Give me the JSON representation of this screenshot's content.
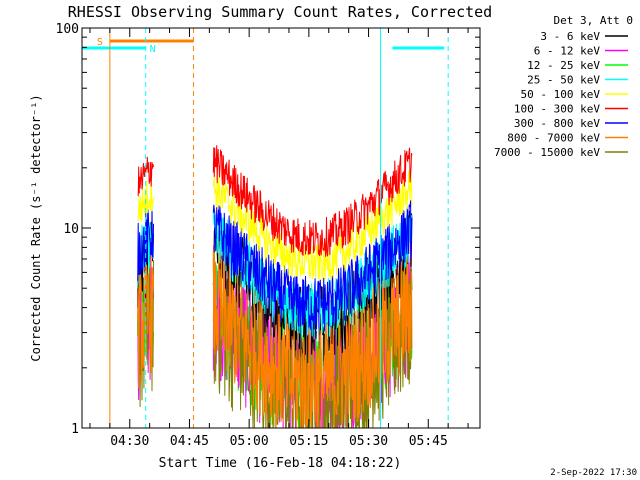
{
  "chart_data": {
    "type": "line",
    "title": "RHESSI Observing Summary Count Rates, Corrected",
    "xlabel": "Start Time (16-Feb-18 04:18:22)",
    "ylabel": "Corrected Count Rate (s⁻¹ detector⁻¹)",
    "y_scale": "log",
    "ylim": [
      1,
      100
    ],
    "yticks": [
      {
        "value": 1,
        "label": "1"
      },
      {
        "value": 10,
        "label": "10"
      },
      {
        "value": 100,
        "label": "100"
      }
    ],
    "xlim": [
      "04:18",
      "05:58"
    ],
    "xticks": [
      "04:30",
      "04:45",
      "05:00",
      "05:15",
      "05:30",
      "05:45"
    ],
    "grid": false,
    "legend_position": "top-right",
    "legend_title": "Det 3, Att 0",
    "series": [
      {
        "name": "3 - 6 keV",
        "color": "#000000"
      },
      {
        "name": "6 - 12 keV",
        "color": "#ff00ff"
      },
      {
        "name": "12 - 25 keV",
        "color": "#00ff00"
      },
      {
        "name": "25 - 50 keV",
        "color": "#00ffff"
      },
      {
        "name": "50 - 100 keV",
        "color": "#ffff00"
      },
      {
        "name": "100 - 300 keV",
        "color": "#ff0000"
      },
      {
        "name": "300 - 800 keV",
        "color": "#0000ff"
      },
      {
        "name": "800 - 7000 keV",
        "color": "#ff8000"
      },
      {
        "name": "7000 - 15000 keV",
        "color": "#808000"
      }
    ],
    "bands": [
      {
        "label": "N",
        "color": "#00ffff",
        "segments": [
          [
            "04:18",
            "04:34"
          ],
          [
            "05:36",
            "05:49"
          ]
        ]
      },
      {
        "label": "S",
        "color": "#ff8000",
        "segments": [
          [
            "04:25",
            "04:46"
          ]
        ]
      }
    ],
    "markers": [
      {
        "time": "04:25",
        "color": "#ff8000",
        "style": "solid"
      },
      {
        "time": "04:34",
        "color": "#00ffff",
        "style": "dashed"
      },
      {
        "time": "04:46",
        "color": "#ff8000",
        "style": "dashed"
      },
      {
        "time": "05:33",
        "color": "#00ffff",
        "style": "solid"
      },
      {
        "time": "05:50",
        "color": "#00ffff",
        "style": "dashed"
      }
    ],
    "footer": "2-Sep-2022 17:30"
  }
}
